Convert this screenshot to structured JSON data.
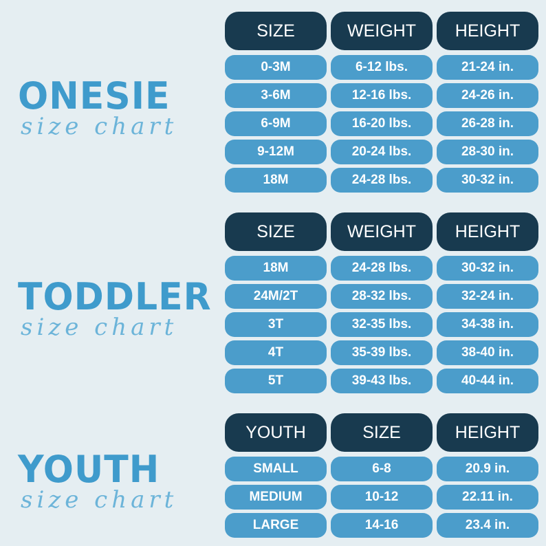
{
  "sections": [
    {
      "title": "ONESIE",
      "subtitle": "size chart",
      "headers": [
        "SIZE",
        "WEIGHT",
        "HEIGHT"
      ],
      "rows": [
        [
          "0-3M",
          "6-12 lbs.",
          "21-24 in."
        ],
        [
          "3-6M",
          "12-16 lbs.",
          "24-26 in."
        ],
        [
          "6-9M",
          "16-20 lbs.",
          "26-28 in."
        ],
        [
          "9-12M",
          "20-24 lbs.",
          "28-30 in."
        ],
        [
          "18M",
          "24-28 lbs.",
          "30-32 in."
        ]
      ]
    },
    {
      "title": "TODDLER",
      "subtitle": "size chart",
      "headers": [
        "SIZE",
        "WEIGHT",
        "HEIGHT"
      ],
      "rows": [
        [
          "18M",
          "24-28 lbs.",
          "30-32 in."
        ],
        [
          "24M/2T",
          "28-32 lbs.",
          "32-24 in."
        ],
        [
          "3T",
          "32-35 lbs.",
          "34-38 in."
        ],
        [
          "4T",
          "35-39 lbs.",
          "38-40 in."
        ],
        [
          "5T",
          "39-43 lbs.",
          "40-44 in."
        ]
      ]
    },
    {
      "title": "YOUTH",
      "subtitle": "size chart",
      "headers": [
        "YOUTH",
        "SIZE",
        "HEIGHT"
      ],
      "rows": [
        [
          "SMALL",
          "6-8",
          "20.9 in."
        ],
        [
          "MEDIUM",
          "10-12",
          "22.11 in."
        ],
        [
          "LARGE",
          "14-16",
          "23.4 in."
        ]
      ]
    }
  ]
}
